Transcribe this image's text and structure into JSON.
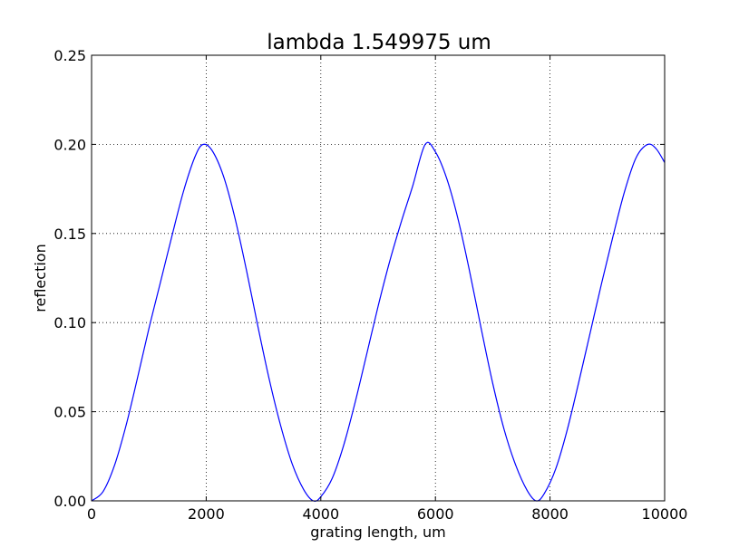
{
  "chart_data": {
    "type": "line",
    "title": "lambda 1.549975 um",
    "xlabel": "grating length, um",
    "ylabel": "reflection",
    "xlim": [
      0,
      10000
    ],
    "ylim": [
      0,
      0.25
    ],
    "xticks": [
      0,
      2000,
      4000,
      6000,
      8000,
      10000
    ],
    "xtick_labels": [
      "0",
      "2000",
      "4000",
      "6000",
      "8000",
      "10000"
    ],
    "yticks": [
      0.0,
      0.05,
      0.1,
      0.15,
      0.2,
      0.25
    ],
    "ytick_labels": [
      "0.00",
      "0.05",
      "0.10",
      "0.15",
      "0.20",
      "0.25"
    ],
    "grid": true,
    "colors": {
      "series": "#0000ff"
    },
    "series": [
      {
        "x": [
          0,
          200,
          400,
          600,
          800,
          1000,
          1200,
          1400,
          1600,
          1800,
          1940,
          2100,
          2300,
          2500,
          2700,
          2900,
          3100,
          3300,
          3500,
          3700,
          3870,
          4000,
          4200,
          4400,
          4600,
          4800,
          5000,
          5200,
          5400,
          5600,
          5820,
          6000,
          6200,
          6400,
          6600,
          6800,
          7000,
          7200,
          7400,
          7600,
          7760,
          7900,
          8100,
          8300,
          8500,
          8700,
          8900,
          9100,
          9300,
          9500,
          9700,
          9850,
          10000
        ],
        "y": [
          0.0,
          0.0052,
          0.0199,
          0.0421,
          0.0688,
          0.0966,
          0.1224,
          0.1483,
          0.1732,
          0.1927,
          0.1999,
          0.1967,
          0.1823,
          0.1589,
          0.1298,
          0.0982,
          0.0682,
          0.0421,
          0.0208,
          0.0064,
          0.0,
          0.0023,
          0.0127,
          0.0313,
          0.0554,
          0.0822,
          0.1092,
          0.1341,
          0.1561,
          0.1763,
          0.1999,
          0.1958,
          0.1806,
          0.1574,
          0.1282,
          0.0964,
          0.0659,
          0.0399,
          0.0201,
          0.0059,
          0.0,
          0.0041,
          0.018,
          0.0398,
          0.0664,
          0.0942,
          0.1221,
          0.1486,
          0.1735,
          0.1924,
          0.1999,
          0.1976,
          0.1898
        ]
      }
    ]
  }
}
